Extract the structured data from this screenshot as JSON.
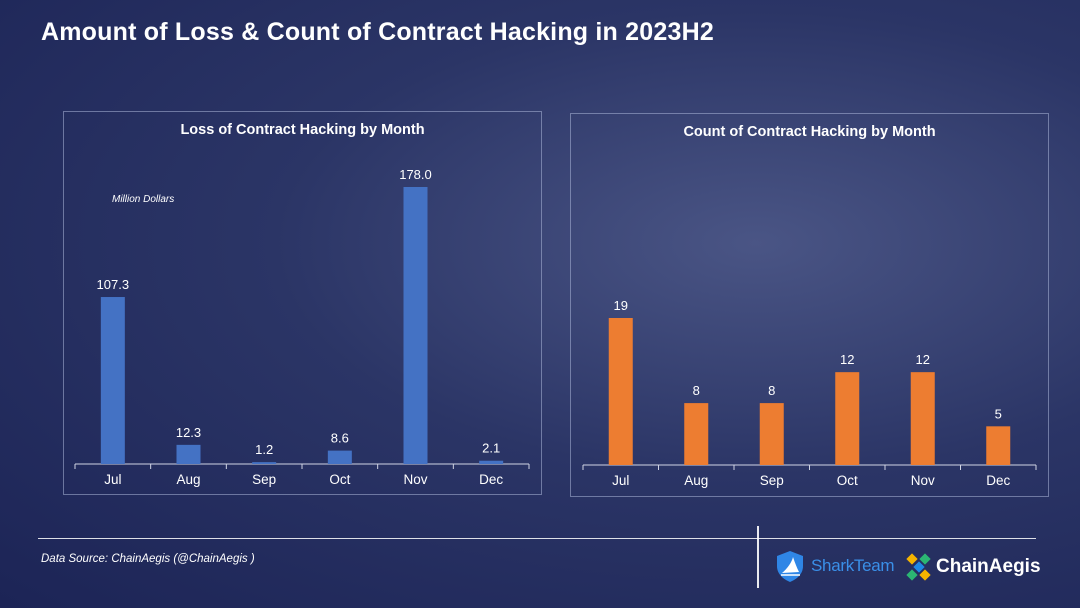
{
  "title": "Amount of Loss & Count of Contract Hacking in 2023H2",
  "footer": {
    "source": "Data Source: ChainAegis (@ChainAegis )",
    "logo_sharkteam": "SharkTeam",
    "logo_chainaegis": "ChainAegis"
  },
  "colors": {
    "loss_bar": "#4472c4",
    "count_bar": "#ed7d31",
    "axis": "#d0d4e4"
  },
  "chart_data": [
    {
      "type": "bar",
      "title": "Loss of Contract Hacking by Month",
      "unit_label": "Million Dollars",
      "categories": [
        "Jul",
        "Aug",
        "Sep",
        "Oct",
        "Nov",
        "Dec"
      ],
      "values": [
        107.3,
        12.3,
        1.2,
        8.6,
        178.0,
        2.1
      ],
      "data_labels": [
        "107.3",
        "12.3",
        "1.2",
        "8.6",
        "178.0",
        "2.1"
      ],
      "ylim": [
        0,
        178
      ],
      "grid": false
    },
    {
      "type": "bar",
      "title": "Count of Contract Hacking by  Month",
      "categories": [
        "Jul",
        "Aug",
        "Sep",
        "Oct",
        "Nov",
        "Dec"
      ],
      "values": [
        19,
        8,
        8,
        12,
        12,
        5
      ],
      "data_labels": [
        "19",
        "8",
        "8",
        "12",
        "12",
        "5"
      ],
      "ylim": [
        0,
        19
      ],
      "grid": false
    }
  ]
}
